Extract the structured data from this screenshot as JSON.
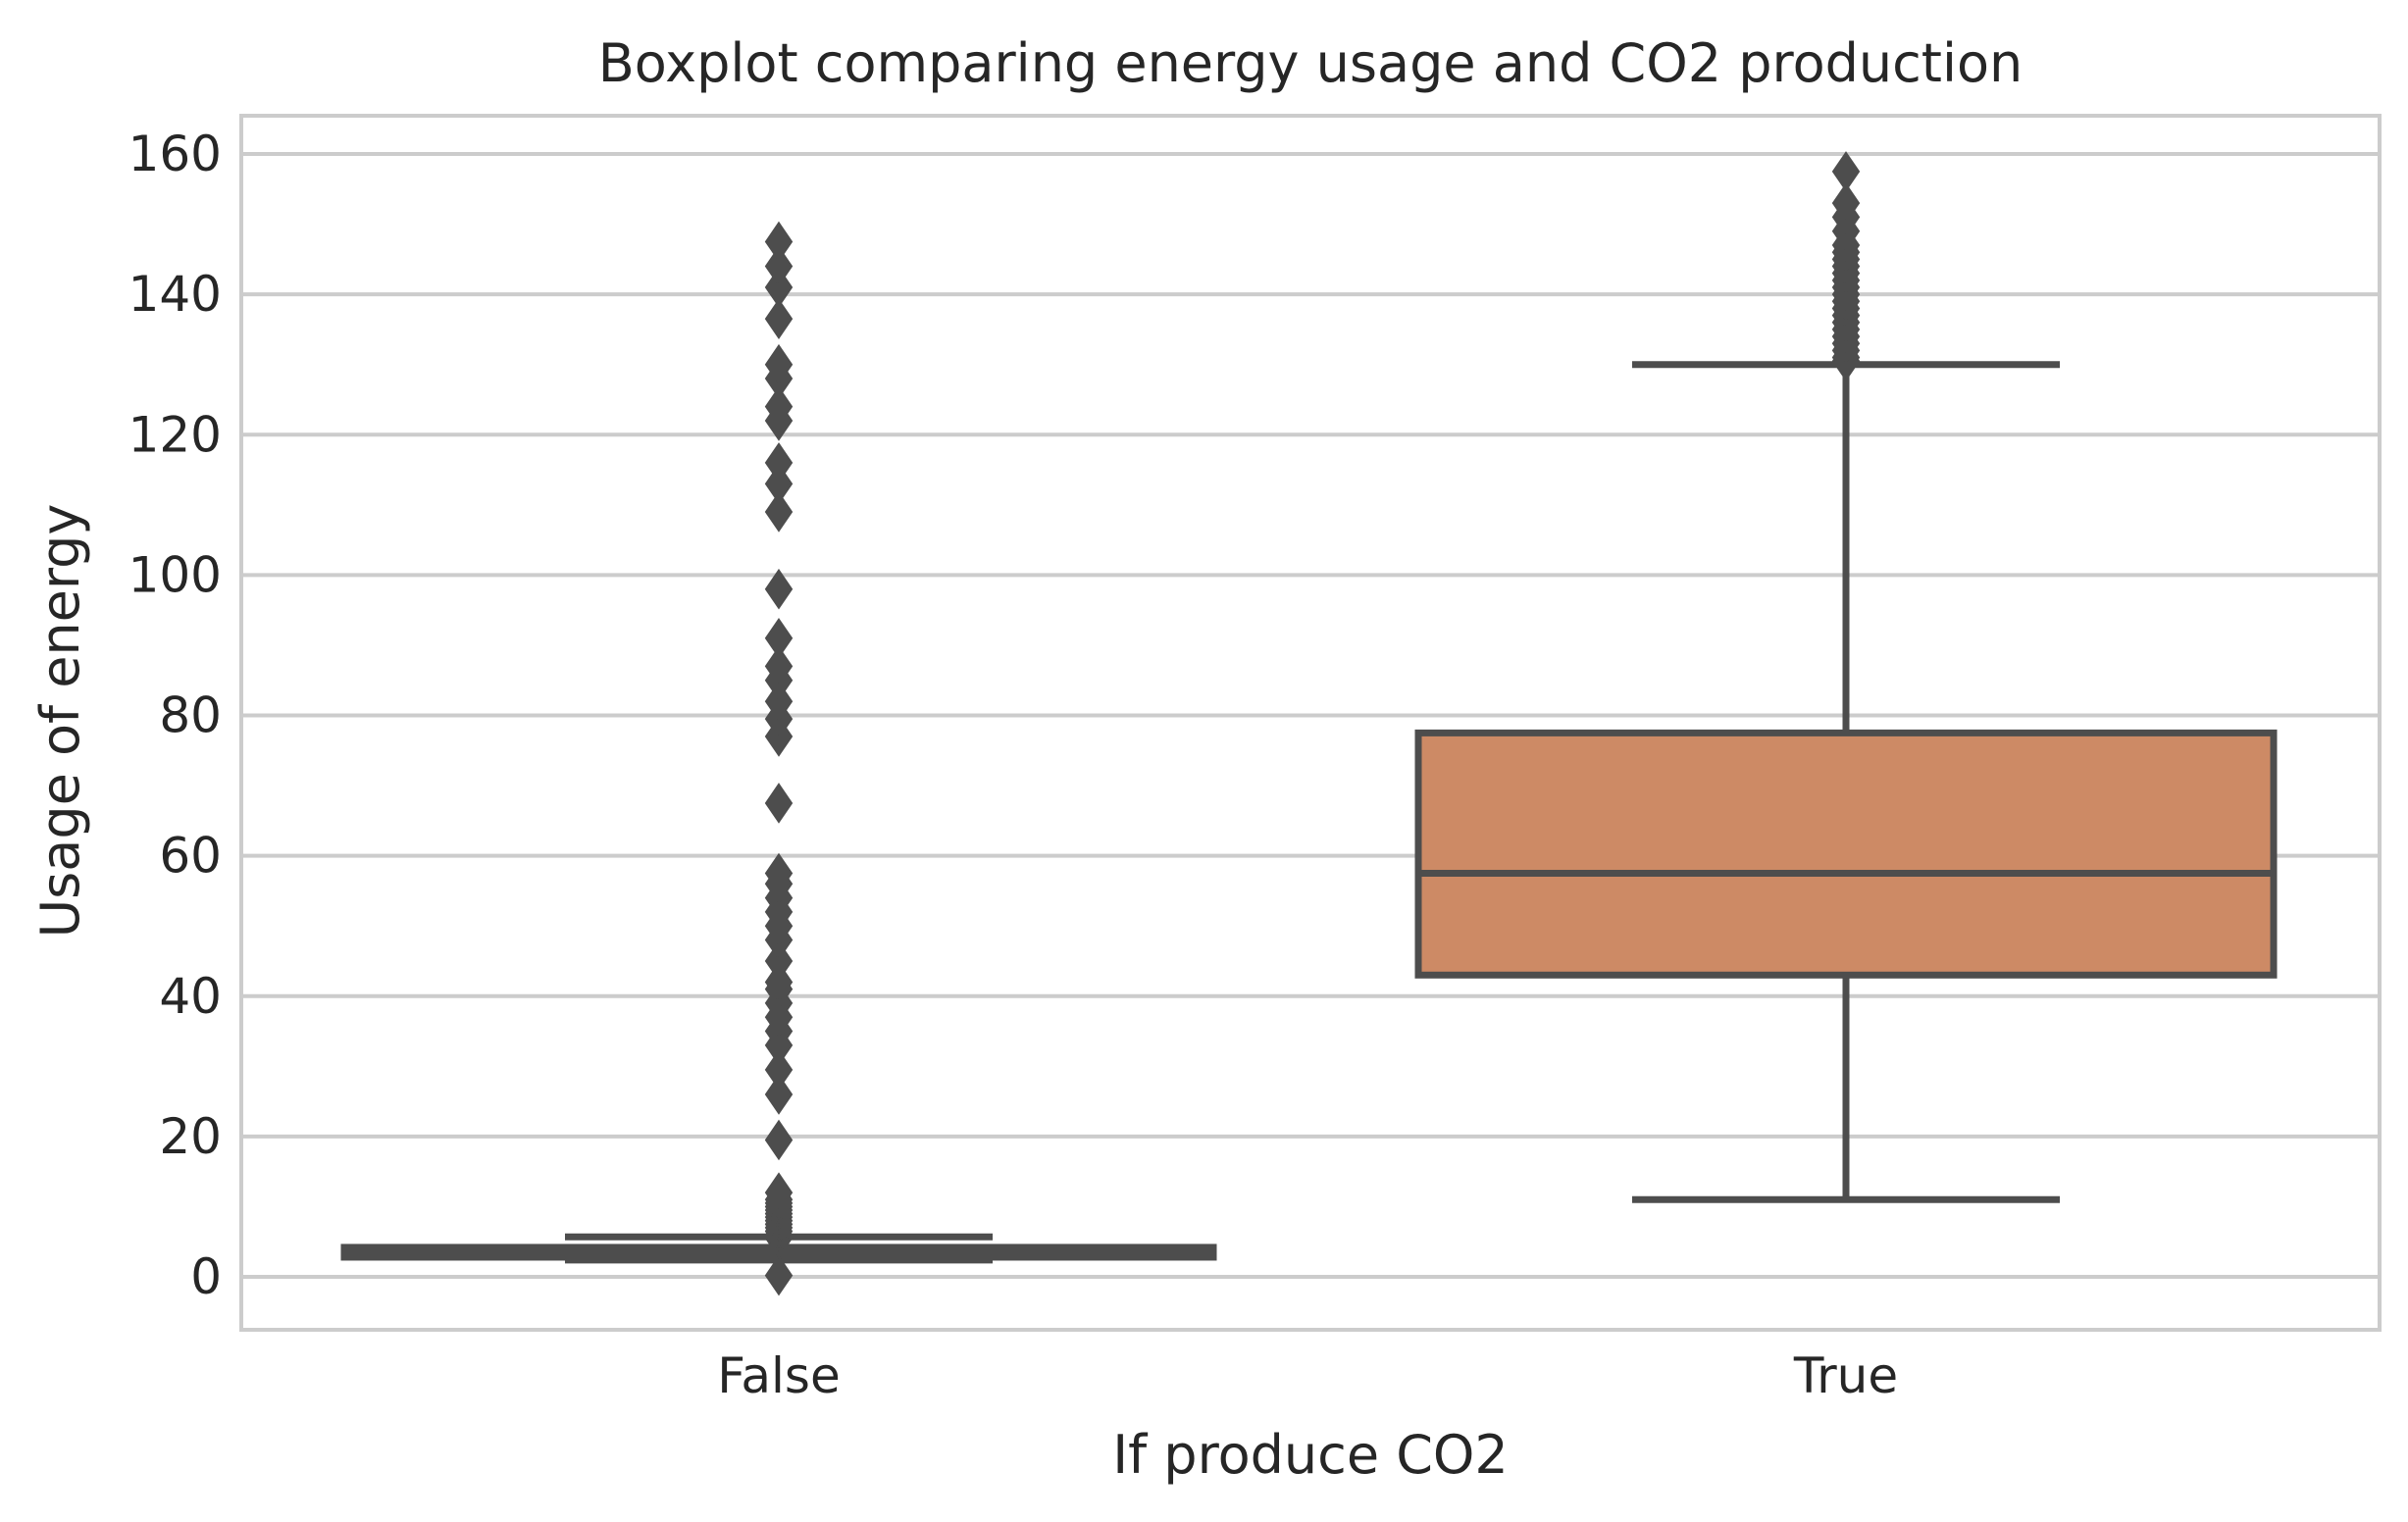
{
  "chart_data": {
    "type": "box",
    "title": "Boxplot comparing energy usage and CO2 production",
    "xlabel": "If produce CO2",
    "ylabel": "Usage of energy",
    "ylim": [
      -8,
      165
    ],
    "yticks": [
      0,
      20,
      40,
      60,
      80,
      100,
      120,
      140,
      160
    ],
    "grid": "horizontal",
    "categories": [
      "False",
      "True"
    ],
    "boxes": [
      {
        "category": "False",
        "q1": 2.8,
        "median": 3.5,
        "q3": 4.2,
        "whisker_low": 2.4,
        "whisker_high": 5.7,
        "color": "#4d4d4d",
        "outliers": [
          0.2,
          5.5,
          6,
          6.5,
          7,
          7.5,
          8,
          8.5,
          9,
          9.5,
          10,
          10.5,
          11,
          12,
          19.5,
          26,
          29.5,
          33,
          35,
          37,
          39,
          41,
          42,
          45,
          48,
          50,
          52,
          54,
          56,
          57.5,
          67.5,
          77,
          79.5,
          82,
          85,
          87,
          91,
          98,
          109,
          113,
          116,
          122,
          124,
          128,
          130,
          136.5,
          141,
          144,
          147.5
        ]
      },
      {
        "category": "True",
        "q1": 43,
        "median": 57.5,
        "q3": 77.5,
        "whisker_low": 11,
        "whisker_high": 130,
        "color": "#cd8a65",
        "outliers": [
          130.5,
          131,
          132,
          133,
          134,
          135,
          136,
          137,
          138,
          139,
          140,
          141,
          142,
          143,
          144,
          145,
          146,
          147,
          149,
          151,
          153,
          157.5
        ]
      }
    ],
    "colors": {
      "box_edge": "#4d4d4d",
      "grid": "#cccccc",
      "text": "#262626"
    }
  }
}
